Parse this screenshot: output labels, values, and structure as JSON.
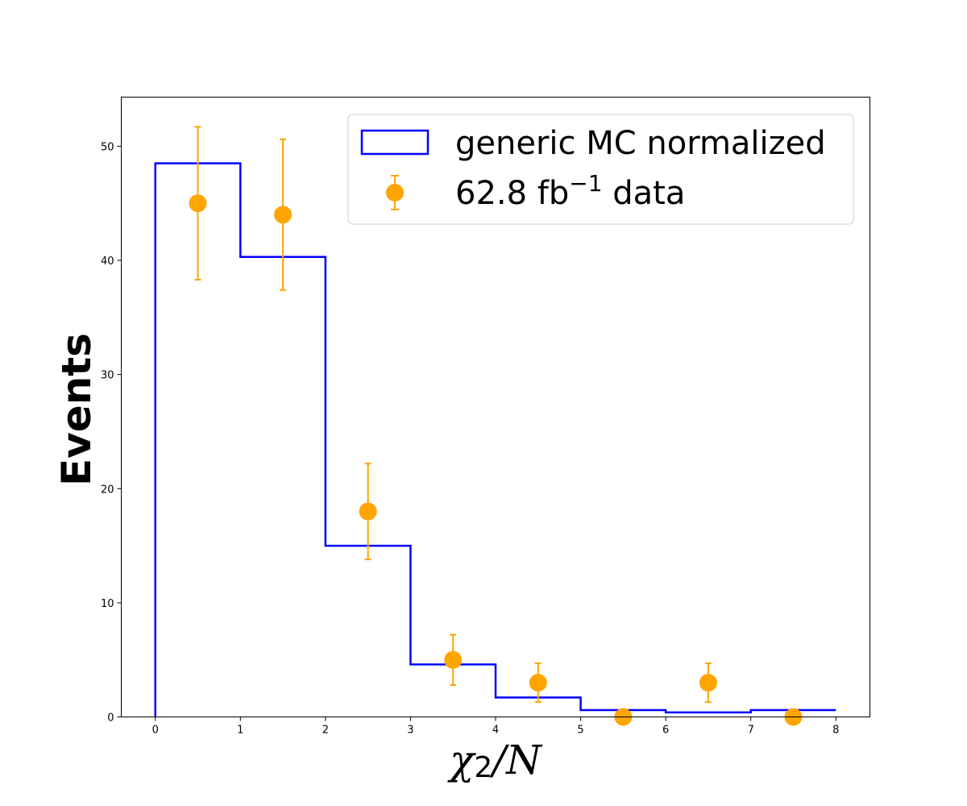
{
  "chart_data": {
    "type": "bar",
    "xlabel": "χ2/N",
    "ylabel": "Events",
    "xlim": [
      -0.4,
      8.4
    ],
    "ylim": [
      0,
      54.3
    ],
    "xticks": [
      0,
      1,
      2,
      3,
      4,
      5,
      6,
      7,
      8
    ],
    "yticks": [
      0,
      10,
      20,
      30,
      40,
      50
    ],
    "grid": false,
    "legend_position": "top-right",
    "series": [
      {
        "name": "generic MC normalized",
        "style": "step",
        "color": "#0000ff",
        "bin_edges": [
          0,
          1,
          2,
          3,
          4,
          5,
          6,
          7,
          8
        ],
        "values": [
          48.5,
          40.3,
          15.0,
          4.6,
          1.7,
          0.6,
          0.4,
          0.6
        ]
      },
      {
        "name": "62.8 fb−1 data",
        "style": "errorbar",
        "color": "#ffa500",
        "x": [
          0.5,
          1.5,
          2.5,
          3.5,
          4.5,
          5.5,
          6.5,
          7.5
        ],
        "y": [
          45,
          44,
          18,
          5,
          3,
          0,
          3,
          0
        ],
        "yerr_low": [
          6.7,
          6.6,
          4.2,
          2.2,
          1.7,
          0,
          1.7,
          0
        ],
        "yerr_high": [
          6.7,
          6.6,
          4.2,
          2.2,
          1.7,
          0,
          1.7,
          0
        ]
      }
    ]
  }
}
